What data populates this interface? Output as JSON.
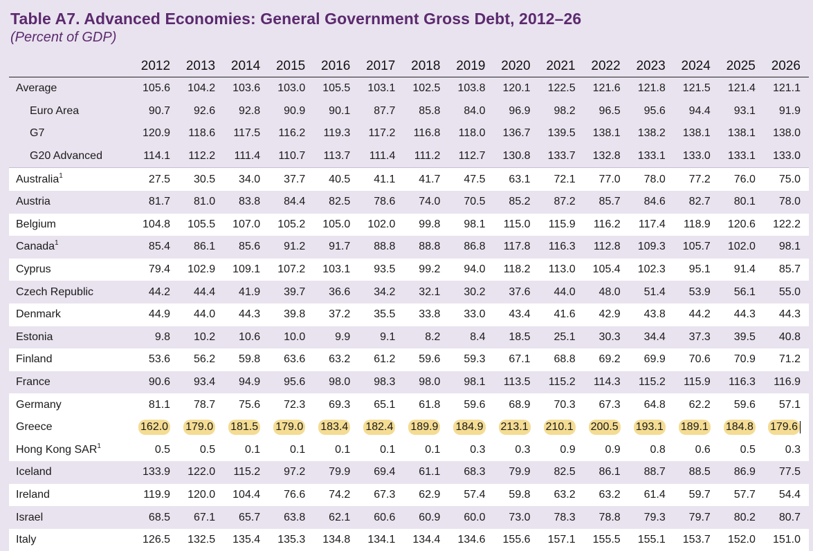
{
  "title": "Table A7. Advanced Economies: General Government Gross Debt, 2012–26",
  "subtitle": "(Percent of GDP)",
  "years": [
    "2012",
    "2013",
    "2014",
    "2015",
    "2016",
    "2017",
    "2018",
    "2019",
    "2020",
    "2021",
    "2022",
    "2023",
    "2024",
    "2025",
    "2026"
  ],
  "rows": [
    {
      "label": "Average",
      "sup": "",
      "indent": false,
      "group": "agg",
      "values": [
        "105.6",
        "104.2",
        "103.6",
        "103.0",
        "105.5",
        "103.1",
        "102.5",
        "103.8",
        "120.1",
        "122.5",
        "121.6",
        "121.8",
        "121.5",
        "121.4",
        "121.1"
      ]
    },
    {
      "label": "Euro Area",
      "sup": "",
      "indent": true,
      "group": "agg",
      "values": [
        "90.7",
        "92.6",
        "92.8",
        "90.9",
        "90.1",
        "87.7",
        "85.8",
        "84.0",
        "96.9",
        "98.2",
        "96.5",
        "95.6",
        "94.4",
        "93.1",
        "91.9"
      ]
    },
    {
      "label": "G7",
      "sup": "",
      "indent": true,
      "group": "agg",
      "values": [
        "120.9",
        "118.6",
        "117.5",
        "116.2",
        "119.3",
        "117.2",
        "116.8",
        "118.0",
        "136.7",
        "139.5",
        "138.1",
        "138.2",
        "138.1",
        "138.1",
        "138.0"
      ]
    },
    {
      "label": "G20 Advanced",
      "sup": "",
      "indent": true,
      "group": "agg",
      "values": [
        "114.1",
        "112.2",
        "111.4",
        "110.7",
        "113.7",
        "111.4",
        "111.2",
        "112.7",
        "130.8",
        "133.7",
        "132.8",
        "133.1",
        "133.0",
        "133.1",
        "133.0"
      ]
    },
    {
      "label": "Australia",
      "sup": "1",
      "indent": false,
      "group": "white",
      "values": [
        "27.5",
        "30.5",
        "34.0",
        "37.7",
        "40.5",
        "41.1",
        "41.7",
        "47.5",
        "63.1",
        "72.1",
        "77.0",
        "78.0",
        "77.2",
        "76.0",
        "75.0"
      ]
    },
    {
      "label": "Austria",
      "sup": "",
      "indent": false,
      "group": "lav",
      "values": [
        "81.7",
        "81.0",
        "83.8",
        "84.4",
        "82.5",
        "78.6",
        "74.0",
        "70.5",
        "85.2",
        "87.2",
        "85.7",
        "84.6",
        "82.7",
        "80.1",
        "78.0"
      ]
    },
    {
      "label": "Belgium",
      "sup": "",
      "indent": false,
      "group": "white",
      "values": [
        "104.8",
        "105.5",
        "107.0",
        "105.2",
        "105.0",
        "102.0",
        "99.8",
        "98.1",
        "115.0",
        "115.9",
        "116.2",
        "117.4",
        "118.9",
        "120.6",
        "122.2"
      ]
    },
    {
      "label": "Canada",
      "sup": "1",
      "indent": false,
      "group": "lav",
      "values": [
        "85.4",
        "86.1",
        "85.6",
        "91.2",
        "91.7",
        "88.8",
        "88.8",
        "86.8",
        "117.8",
        "116.3",
        "112.8",
        "109.3",
        "105.7",
        "102.0",
        "98.1"
      ]
    },
    {
      "label": "Cyprus",
      "sup": "",
      "indent": false,
      "group": "white",
      "values": [
        "79.4",
        "102.9",
        "109.1",
        "107.2",
        "103.1",
        "93.5",
        "99.2",
        "94.0",
        "118.2",
        "113.0",
        "105.4",
        "102.3",
        "95.1",
        "91.4",
        "85.7"
      ]
    },
    {
      "label": "Czech Republic",
      "sup": "",
      "indent": false,
      "group": "lav",
      "values": [
        "44.2",
        "44.4",
        "41.9",
        "39.7",
        "36.6",
        "34.2",
        "32.1",
        "30.2",
        "37.6",
        "44.0",
        "48.0",
        "51.4",
        "53.9",
        "56.1",
        "55.0"
      ]
    },
    {
      "label": "Denmark",
      "sup": "",
      "indent": false,
      "group": "white",
      "values": [
        "44.9",
        "44.0",
        "44.3",
        "39.8",
        "37.2",
        "35.5",
        "33.8",
        "33.0",
        "43.4",
        "41.6",
        "42.9",
        "43.8",
        "44.2",
        "44.3",
        "44.3"
      ]
    },
    {
      "label": "Estonia",
      "sup": "",
      "indent": false,
      "group": "lav",
      "values": [
        "9.8",
        "10.2",
        "10.6",
        "10.0",
        "9.9",
        "9.1",
        "8.2",
        "8.4",
        "18.5",
        "25.1",
        "30.3",
        "34.4",
        "37.3",
        "39.5",
        "40.8"
      ]
    },
    {
      "label": "Finland",
      "sup": "",
      "indent": false,
      "group": "white",
      "values": [
        "53.6",
        "56.2",
        "59.8",
        "63.6",
        "63.2",
        "61.2",
        "59.6",
        "59.3",
        "67.1",
        "68.8",
        "69.2",
        "69.9",
        "70.6",
        "70.9",
        "71.2"
      ]
    },
    {
      "label": "France",
      "sup": "",
      "indent": false,
      "group": "lav",
      "values": [
        "90.6",
        "93.4",
        "94.9",
        "95.6",
        "98.0",
        "98.3",
        "98.0",
        "98.1",
        "113.5",
        "115.2",
        "114.3",
        "115.2",
        "115.9",
        "116.3",
        "116.9"
      ]
    },
    {
      "label": "Germany",
      "sup": "",
      "indent": false,
      "group": "white",
      "values": [
        "81.1",
        "78.7",
        "75.6",
        "72.3",
        "69.3",
        "65.1",
        "61.8",
        "59.6",
        "68.9",
        "70.3",
        "67.3",
        "64.8",
        "62.2",
        "59.6",
        "57.1"
      ]
    },
    {
      "label": "Greece",
      "sup": "",
      "indent": false,
      "group": "highlight",
      "values": [
        "162.0",
        "179.0",
        "181.5",
        "179.0",
        "183.4",
        "182.4",
        "189.9",
        "184.9",
        "213.1",
        "210.1",
        "200.5",
        "193.1",
        "189.1",
        "184.8",
        "179.6"
      ]
    },
    {
      "label": "Hong Kong SAR",
      "sup": "1",
      "indent": false,
      "group": "white",
      "values": [
        "0.5",
        "0.5",
        "0.1",
        "0.1",
        "0.1",
        "0.1",
        "0.1",
        "0.3",
        "0.3",
        "0.9",
        "0.9",
        "0.8",
        "0.6",
        "0.5",
        "0.3"
      ]
    },
    {
      "label": "Iceland",
      "sup": "",
      "indent": false,
      "group": "lav",
      "values": [
        "133.9",
        "122.0",
        "115.2",
        "97.2",
        "79.9",
        "69.4",
        "61.1",
        "68.3",
        "79.9",
        "82.5",
        "86.1",
        "88.7",
        "88.5",
        "86.9",
        "77.5"
      ]
    },
    {
      "label": "Ireland",
      "sup": "",
      "indent": false,
      "group": "white",
      "values": [
        "119.9",
        "120.0",
        "104.4",
        "76.6",
        "74.2",
        "67.3",
        "62.9",
        "57.4",
        "59.8",
        "63.2",
        "63.2",
        "61.4",
        "59.7",
        "57.7",
        "54.4"
      ]
    },
    {
      "label": "Israel",
      "sup": "",
      "indent": false,
      "group": "lav",
      "values": [
        "68.5",
        "67.1",
        "65.7",
        "63.8",
        "62.1",
        "60.6",
        "60.9",
        "60.0",
        "73.0",
        "78.3",
        "78.8",
        "79.3",
        "79.7",
        "80.2",
        "80.7"
      ]
    },
    {
      "label": "Italy",
      "sup": "",
      "indent": false,
      "group": "white",
      "values": [
        "126.5",
        "132.5",
        "135.4",
        "135.3",
        "134.8",
        "134.1",
        "134.4",
        "134.6",
        "155.6",
        "157.1",
        "155.5",
        "155.1",
        "153.7",
        "152.0",
        "151.0"
      ]
    }
  ],
  "colors": {
    "title": "#5b2a6e",
    "highlight": "#f4dc93",
    "band": "#e9e3ef",
    "white": "#ffffff"
  }
}
